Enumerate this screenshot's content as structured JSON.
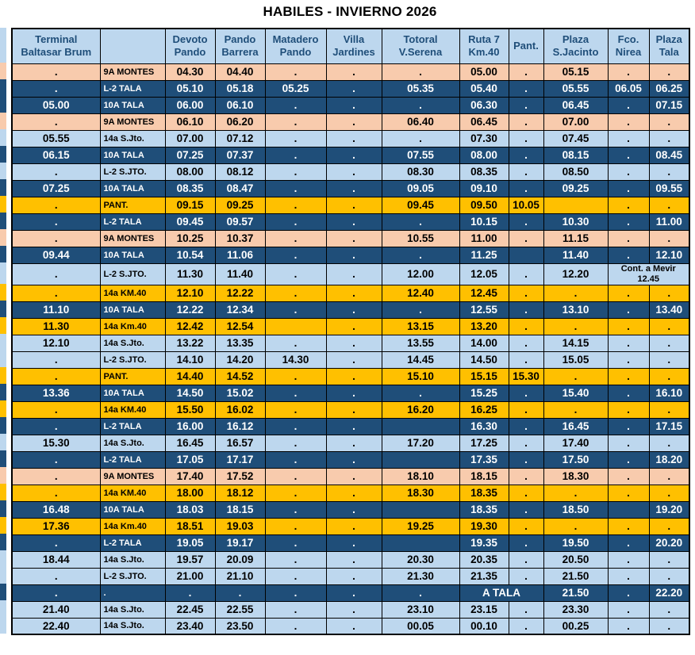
{
  "title": "HABILES - INVIERNO 2026",
  "colors": {
    "dark": "#1F4E79",
    "light": "#BDD7EE",
    "orange": "#F8CBAD",
    "yellow": "#FFC000",
    "header_bg": "#BDD7EE",
    "header_text": "#1F4E79"
  },
  "table": {
    "columns": [
      "Terminal\nBaltasar Brum",
      "",
      "Devoto\nPando",
      "Pando\nBarrera",
      "Matadero\nPando",
      "Villa\nJardines",
      "Totoral\nV.Serena",
      "Ruta 7\nKm.40",
      "Pant.",
      "Plaza\nS.Jacinto",
      "Fco.\nNirea",
      "Plaza\nTala"
    ],
    "rows": [
      {
        "style": "orange",
        "cells": [
          ".",
          "9A MONTES",
          "04.30",
          "04.40",
          ".",
          ".",
          ".",
          "05.00",
          ".",
          "05.15",
          ".",
          "."
        ]
      },
      {
        "style": "dark",
        "cells": [
          ".",
          "L-2 TALA",
          "05.10",
          "05.18",
          "05.25",
          ".",
          "05.35",
          "05.40",
          ".",
          "05.55",
          "06.05",
          "06.25"
        ]
      },
      {
        "style": "dark",
        "cells": [
          "05.00",
          "10A TALA",
          "06.00",
          "06.10",
          ".",
          ".",
          ".",
          "06.30",
          ".",
          "06.45",
          ".",
          "07.15"
        ]
      },
      {
        "style": "orange",
        "cells": [
          ".",
          "9A MONTES",
          "06.10",
          "06.20",
          ".",
          ".",
          "06.40",
          "06.45",
          ".",
          "07.00",
          ".",
          "."
        ]
      },
      {
        "style": "light",
        "cells": [
          "05.55",
          "14a S.Jto.",
          "07.00",
          "07.12",
          ".",
          ".",
          ".",
          "07.30",
          ".",
          "07.45",
          ".",
          "."
        ]
      },
      {
        "style": "dark",
        "cells": [
          "06.15",
          "10A TALA",
          "07.25",
          "07.37",
          ".",
          ".",
          "07.55",
          "08.00",
          ".",
          "08.15",
          ".",
          "08.45"
        ]
      },
      {
        "style": "light",
        "cells": [
          ".",
          "L-2 S.JTO.",
          "08.00",
          "08.12",
          ".",
          ".",
          "08.30",
          "08.35",
          ".",
          "08.50",
          ".",
          "."
        ]
      },
      {
        "style": "dark",
        "cells": [
          "07.25",
          "10A TALA",
          "08.35",
          "08.47",
          ".",
          ".",
          "09.05",
          "09.10",
          ".",
          "09.25",
          ".",
          "09.55"
        ]
      },
      {
        "style": "yellow",
        "cells": [
          ".",
          "PANT.",
          "09.15",
          "09.25",
          ".",
          ".",
          "09.45",
          "09.50",
          "10.05",
          "",
          ".",
          "."
        ]
      },
      {
        "style": "dark",
        "cells": [
          ".",
          "L-2 TALA",
          "09.45",
          "09.57",
          ".",
          ".",
          ".",
          "10.15",
          ".",
          "10.30",
          ".",
          "11.00"
        ]
      },
      {
        "style": "orange",
        "cells": [
          ".",
          "9A MONTES",
          "10.25",
          "10.37",
          ".",
          ".",
          "10.55",
          "11.00",
          ".",
          "11.15",
          ".",
          "."
        ]
      },
      {
        "style": "dark",
        "cells": [
          "09.44",
          "10A TALA",
          "10.54",
          "11.06",
          ".",
          ".",
          ".",
          "11.25",
          "",
          "11.40",
          ".",
          "12.10"
        ]
      },
      {
        "style": "light",
        "cells": [
          ".",
          "L-2 S.JTO.",
          "11.30",
          "11.40",
          ".",
          ".",
          "12.00",
          "12.05",
          ".",
          "12.20",
          {
            "text": "Cont. a Mevir\n12.45",
            "colspan": 2,
            "small": true
          }
        ]
      },
      {
        "style": "yellow",
        "cells": [
          ".",
          "14a KM.40",
          "12.10",
          "12.22",
          ".",
          ".",
          "12.40",
          "12.45",
          ".",
          ".",
          ".",
          "."
        ]
      },
      {
        "style": "dark",
        "cells": [
          "11.10",
          "10A TALA",
          "12.22",
          "12.34",
          ".",
          ".",
          ".",
          "12.55",
          ".",
          "13.10",
          ".",
          "13.40"
        ]
      },
      {
        "style": "yellow",
        "cells": [
          "11.30",
          "14a Km.40",
          "12.42",
          "12.54",
          "",
          ".",
          "13.15",
          "13.20",
          ".",
          ".",
          ".",
          "."
        ]
      },
      {
        "style": "light",
        "cells": [
          "12.10",
          "14a S.Jto.",
          "13.22",
          "13.35",
          ".",
          ".",
          "13.55",
          "14.00",
          ".",
          "14.15",
          ".",
          "."
        ]
      },
      {
        "style": "light",
        "cells": [
          ".",
          "L-2 S.JTO.",
          "14.10",
          "14.20",
          "14.30",
          ".",
          "14.45",
          "14.50",
          ".",
          "15.05",
          ".",
          "."
        ]
      },
      {
        "style": "yellow",
        "cells": [
          ".",
          "PANT.",
          "14.40",
          "14.52",
          ".",
          ".",
          "15.10",
          "15.15",
          "15.30",
          ".",
          ".",
          "."
        ]
      },
      {
        "style": "dark",
        "cells": [
          "13.36",
          "10A TALA",
          "14.50",
          "15.02",
          ".",
          ".",
          ".",
          "15.25",
          ".",
          "15.40",
          ".",
          "16.10"
        ]
      },
      {
        "style": "yellow",
        "cells": [
          ".",
          "14a KM.40",
          "15.50",
          "16.02",
          ".",
          ".",
          "16.20",
          "16.25",
          ".",
          ".",
          ".",
          "."
        ]
      },
      {
        "style": "dark",
        "cells": [
          ".",
          "L-2 TALA",
          "16.00",
          "16.12",
          ".",
          ".",
          "",
          "16.30",
          ".",
          "16.45",
          ".",
          "17.15"
        ]
      },
      {
        "style": "light",
        "cells": [
          "15.30",
          "14a S.Jto.",
          "16.45",
          "16.57",
          ".",
          ".",
          "17.20",
          "17.25",
          ".",
          "17.40",
          ".",
          "."
        ]
      },
      {
        "style": "dark",
        "cells": [
          ".",
          "L-2 TALA",
          "17.05",
          "17.17",
          ".",
          ".",
          "",
          "17.35",
          ".",
          "17.50",
          ".",
          "18.20"
        ]
      },
      {
        "style": "orange",
        "cells": [
          ".",
          "9A MONTES",
          "17.40",
          "17.52",
          ".",
          ".",
          "18.10",
          "18.15",
          ".",
          "18.30",
          ".",
          "."
        ]
      },
      {
        "style": "yellow",
        "cells": [
          ".",
          "14a KM.40",
          "18.00",
          "18.12",
          ".",
          ".",
          "18.30",
          "18.35",
          ".",
          ".",
          ".",
          "."
        ]
      },
      {
        "style": "dark",
        "cells": [
          "16.48",
          "10A TALA",
          "18.03",
          "18.15",
          ".",
          ".",
          "",
          "18.35",
          ".",
          "18.50",
          "",
          "19.20"
        ]
      },
      {
        "style": "yellow",
        "cells": [
          "17.36",
          "14a Km.40",
          "18.51",
          "19.03",
          ".",
          ".",
          "19.25",
          "19.30",
          ".",
          ".",
          ".",
          "."
        ]
      },
      {
        "style": "dark",
        "cells": [
          ".",
          "L-2 TALA",
          "19.05",
          "19.17",
          ".",
          ".",
          "",
          "19.35",
          ".",
          "19.50",
          ".",
          "20.20"
        ]
      },
      {
        "style": "light",
        "cells": [
          "18.44",
          "14a S.Jto.",
          "19.57",
          "20.09",
          ".",
          ".",
          "20.30",
          "20.35",
          ".",
          "20.50",
          ".",
          "."
        ]
      },
      {
        "style": "light",
        "cells": [
          ".",
          "L-2 S.JTO.",
          "21.00",
          "21.10",
          ".",
          ".",
          "21.30",
          "21.35",
          ".",
          "21.50",
          ".",
          "."
        ]
      },
      {
        "style": "dark",
        "cells": [
          ".",
          ".",
          ".",
          ".",
          ".",
          ".",
          ".",
          {
            "text": "A TALA",
            "colspan": 2
          },
          "21.50",
          ".",
          "22.20"
        ]
      },
      {
        "style": "light",
        "cells": [
          "21.40",
          "14a S.Jto.",
          "22.45",
          "22.55",
          ".",
          ".",
          "23.10",
          "23.15",
          ".",
          "23.30",
          ".",
          "."
        ]
      },
      {
        "style": "light",
        "cells": [
          "22.40",
          "14a S.Jto.",
          "23.40",
          "23.50",
          ".",
          ".",
          "00.05",
          "00.10",
          ".",
          "00.25",
          ".",
          "."
        ]
      }
    ]
  }
}
